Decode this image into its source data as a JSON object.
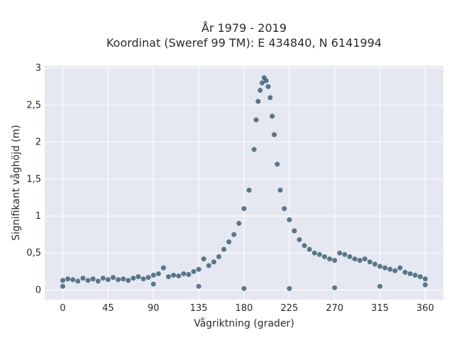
{
  "chart_data": {
    "type": "scatter",
    "title_line1": "År 1979 - 2019",
    "title_line2": "Koordinat (Sweref 99 TM): E 434840, N 6141994",
    "xlabel": "Vågriktning (grader)",
    "ylabel": "Signifikant våghöjd (m)",
    "xlim": [
      -18,
      378
    ],
    "ylim": [
      -0.13,
      3.03
    ],
    "xticks": [
      0,
      45,
      90,
      135,
      180,
      225,
      270,
      315,
      360
    ],
    "xtick_labels": [
      "0",
      "45",
      "90",
      "135",
      "180",
      "225",
      "270",
      "315",
      "360"
    ],
    "yticks": [
      0,
      0.5,
      1,
      1.5,
      2,
      2.5,
      3
    ],
    "ytick_labels": [
      "0",
      "0,5",
      "1",
      "1,5",
      "2",
      "2,5",
      "3"
    ],
    "grid": true,
    "colors": {
      "plot_bg": "#e5e8f0",
      "grid": "#ffffff",
      "marker": "#335a6e"
    },
    "series": [
      {
        "points": [
          [
            0,
            0.13
          ],
          [
            5,
            0.15
          ],
          [
            10,
            0.14
          ],
          [
            15,
            0.12
          ],
          [
            20,
            0.16
          ],
          [
            25,
            0.13
          ],
          [
            30,
            0.15
          ],
          [
            35,
            0.12
          ],
          [
            40,
            0.16
          ],
          [
            45,
            0.14
          ],
          [
            50,
            0.17
          ],
          [
            55,
            0.14
          ],
          [
            60,
            0.15
          ],
          [
            65,
            0.13
          ],
          [
            70,
            0.16
          ],
          [
            75,
            0.18
          ],
          [
            80,
            0.15
          ],
          [
            85,
            0.17
          ],
          [
            90,
            0.2
          ],
          [
            95,
            0.22
          ],
          [
            100,
            0.3
          ],
          [
            105,
            0.18
          ],
          [
            110,
            0.2
          ],
          [
            115,
            0.19
          ],
          [
            120,
            0.22
          ],
          [
            125,
            0.21
          ],
          [
            130,
            0.25
          ],
          [
            135,
            0.28
          ],
          [
            140,
            0.42
          ],
          [
            145,
            0.33
          ],
          [
            150,
            0.38
          ],
          [
            155,
            0.45
          ],
          [
            160,
            0.55
          ],
          [
            165,
            0.65
          ],
          [
            170,
            0.75
          ],
          [
            175,
            0.9
          ],
          [
            180,
            1.1
          ],
          [
            185,
            1.35
          ],
          [
            190,
            1.9
          ],
          [
            192,
            2.3
          ],
          [
            194,
            2.55
          ],
          [
            196,
            2.7
          ],
          [
            198,
            2.8
          ],
          [
            200,
            2.87
          ],
          [
            202,
            2.83
          ],
          [
            204,
            2.75
          ],
          [
            206,
            2.6
          ],
          [
            208,
            2.35
          ],
          [
            210,
            2.1
          ],
          [
            213,
            1.7
          ],
          [
            216,
            1.35
          ],
          [
            220,
            1.1
          ],
          [
            225,
            0.95
          ],
          [
            230,
            0.8
          ],
          [
            235,
            0.68
          ],
          [
            240,
            0.6
          ],
          [
            245,
            0.55
          ],
          [
            250,
            0.5
          ],
          [
            255,
            0.48
          ],
          [
            260,
            0.45
          ],
          [
            265,
            0.42
          ],
          [
            270,
            0.4
          ],
          [
            275,
            0.5
          ],
          [
            280,
            0.48
          ],
          [
            285,
            0.45
          ],
          [
            290,
            0.42
          ],
          [
            295,
            0.4
          ],
          [
            300,
            0.42
          ],
          [
            305,
            0.38
          ],
          [
            310,
            0.35
          ],
          [
            315,
            0.32
          ],
          [
            320,
            0.3
          ],
          [
            325,
            0.28
          ],
          [
            330,
            0.26
          ],
          [
            335,
            0.3
          ],
          [
            340,
            0.24
          ],
          [
            345,
            0.22
          ],
          [
            350,
            0.2
          ],
          [
            355,
            0.18
          ],
          [
            360,
            0.15
          ],
          [
            0,
            0.05
          ],
          [
            90,
            0.08
          ],
          [
            135,
            0.05
          ],
          [
            180,
            0.02
          ],
          [
            225,
            0.02
          ],
          [
            270,
            0.03
          ],
          [
            315,
            0.05
          ],
          [
            360,
            0.07
          ]
        ]
      }
    ]
  }
}
